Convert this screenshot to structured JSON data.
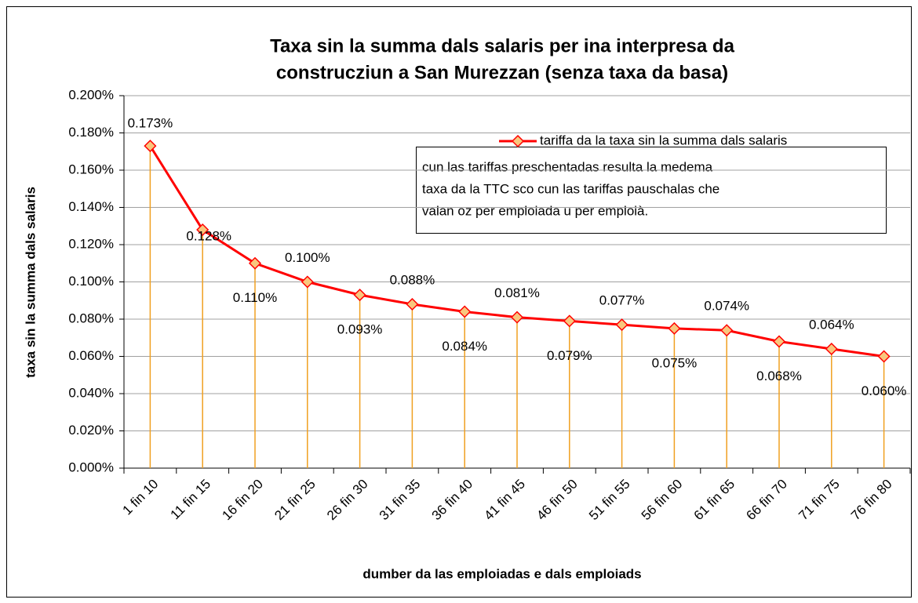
{
  "chart_data": {
    "type": "line",
    "title": [
      "Taxa sin la summa dals salaris per ina interpresa da",
      "construcziun a San Murezzan (senza taxa da basa)"
    ],
    "x_label": "dumber da las emploiadas e dals emploiads",
    "y_label": "taxa sin la summa dals salaris",
    "categories": [
      "1 fin 10",
      "11 fin 15",
      "16 fin 20",
      "21 fin 25",
      "26 fin 30",
      "31 fin 35",
      "36 fin 40",
      "41 fin 45",
      "46 fin 50",
      "51 fin 55",
      "56 fin 60",
      "61 fin 65",
      "66 fin 70",
      "71 fin 75",
      "76 fin 80"
    ],
    "series": [
      {
        "name": "tariffa da la taxa sin la summa dals salaris",
        "color": "#ff0000",
        "marker_color": "#f9c77e",
        "drop_line_color": "#f0a020",
        "values": [
          0.173,
          0.128,
          0.11,
          0.1,
          0.093,
          0.088,
          0.084,
          0.081,
          0.079,
          0.077,
          0.075,
          0.074,
          0.068,
          0.064,
          0.06
        ],
        "value_labels": [
          "0.173%",
          "0.128%",
          "0.110%",
          "0.100%",
          "0.093%",
          "0.088%",
          "0.084%",
          "0.081%",
          "0.079%",
          "0.077%",
          "0.075%",
          "0.074%",
          "0.068%",
          "0.064%",
          "0.060%"
        ]
      }
    ],
    "ylim": [
      0,
      0.2
    ],
    "yticks": [
      {
        "value": 0,
        "label": "0.000%"
      },
      {
        "value": 0.02,
        "label": "0.020%"
      },
      {
        "value": 0.04,
        "label": "0.040%"
      },
      {
        "value": 0.06,
        "label": "0.060%"
      },
      {
        "value": 0.08,
        "label": "0.080%"
      },
      {
        "value": 0.1,
        "label": "0.100%"
      },
      {
        "value": 0.12,
        "label": "0.120%"
      },
      {
        "value": 0.14,
        "label": "0.140%"
      },
      {
        "value": 0.16,
        "label": "0.160%"
      },
      {
        "value": 0.18,
        "label": "0.180%"
      },
      {
        "value": 0.2,
        "label": "0.200%"
      }
    ],
    "grid": true,
    "legend": "top-right",
    "annotation": [
      "cun las tariffas preschentadas resulta la medema",
      "taxa da la TTC sco cun las tariffas pauschalas che",
      "valan oz per emploiada u per emploià."
    ]
  }
}
